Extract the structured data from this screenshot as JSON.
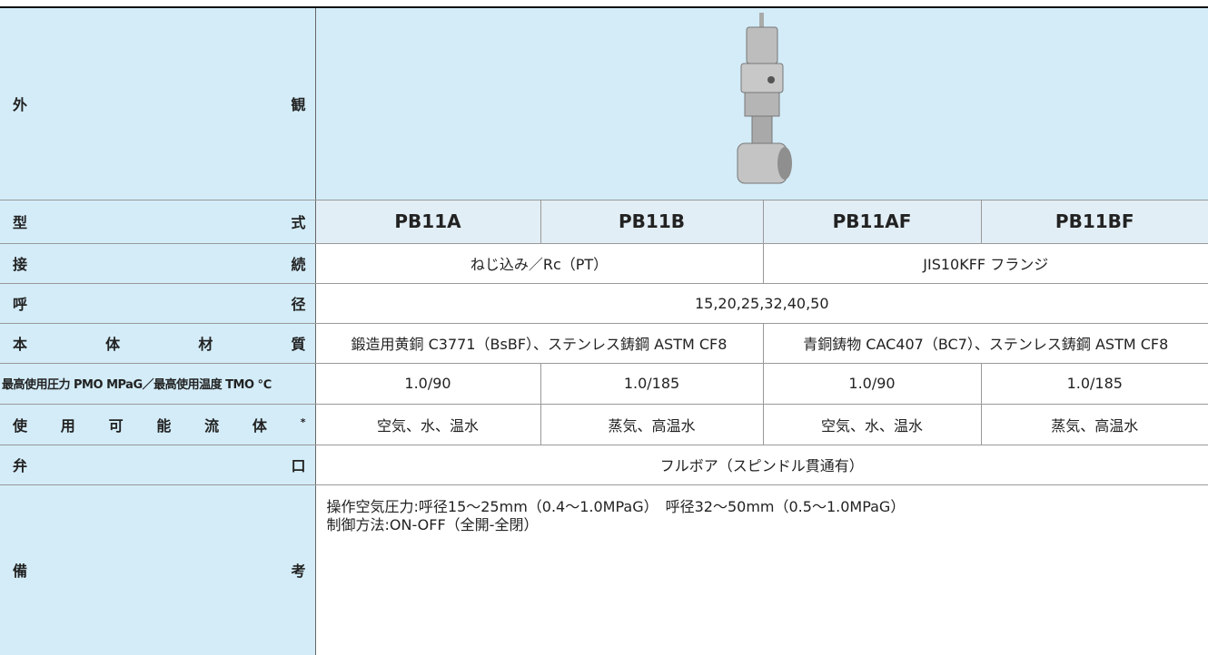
{
  "table": {
    "appearance": {
      "label": "外観"
    },
    "model": {
      "label": "型式",
      "values": [
        "PB11A",
        "PB11B",
        "PB11AF",
        "PB11BF"
      ]
    },
    "connection": {
      "label": "接続",
      "values": [
        "ねじ込み／Rc（PT）",
        "JIS10KFF フランジ"
      ]
    },
    "nominal_size": {
      "label": "呼径",
      "values": [
        "15,20,25,32,40,50"
      ]
    },
    "body_material": {
      "label": "本体材質",
      "values": [
        "鍛造用黄銅 C3771（BsBF）、ステンレス鋳鋼 ASTM CF8",
        "青銅鋳物 CAC407（BC7）、ステンレス鋳鋼 ASTM CF8"
      ]
    },
    "max_pressure_temp": {
      "label": "最高使用圧力 PMO MPaG／最高使用温度 TMO ℃",
      "values": [
        "1.0/90",
        "1.0/185",
        "1.0/90",
        "1.0/185"
      ]
    },
    "fluid": {
      "label": "使用可能流体",
      "note_mark": "*",
      "values": [
        "空気、水、温水",
        "蒸気、高温水",
        "空気、水、温水",
        "蒸気、高温水"
      ]
    },
    "valve_port": {
      "label": "弁口",
      "values": [
        "フルボア（スピンドル貫通有）"
      ]
    },
    "remarks": {
      "label": "備考",
      "lines": [
        "操作空気圧力:呼径15～25mm（0.4～1.0MPaG）　呼径32～50mm（0.5～1.0MPaG）",
        "制御方法:ON-OFF（全開-全閉）"
      ]
    }
  }
}
